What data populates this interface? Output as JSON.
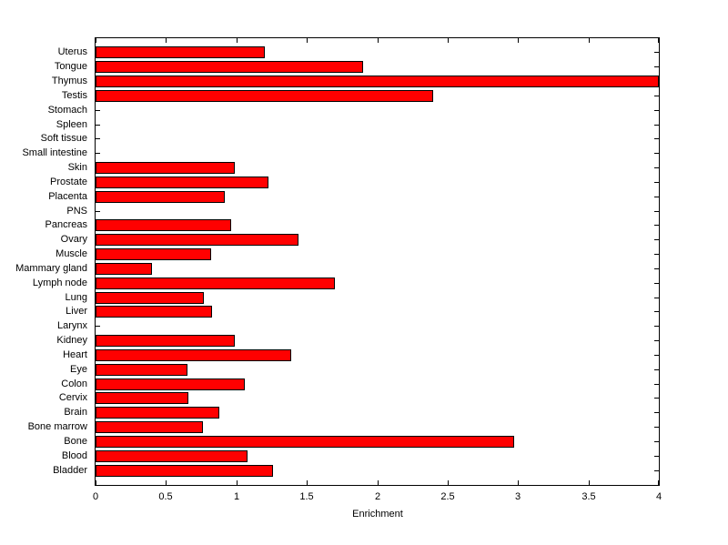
{
  "chart_data": {
    "type": "bar",
    "orientation": "horizontal",
    "title": "",
    "xlabel": "Enrichment",
    "ylabel": "",
    "xlim": [
      0,
      4
    ],
    "xticks": [
      0,
      0.5,
      1,
      1.5,
      2,
      2.5,
      3,
      3.5,
      4
    ],
    "xtick_labels": [
      "0",
      "0.5",
      "1",
      "1.5",
      "2",
      "2.5",
      "3",
      "3.5",
      "4"
    ],
    "grid": false,
    "legend": "none",
    "bar_color": "#ff0000",
    "bar_edge_color": "#000000",
    "axes_color": "#000000",
    "background_color": "#ffffff",
    "categories_top_to_bottom": [
      "Uterus",
      "Tongue",
      "Thymus",
      "Testis",
      "Stomach",
      "Spleen",
      "Soft tissue",
      "Small intestine",
      "Skin",
      "Prostate",
      "Placenta",
      "PNS",
      "Pancreas",
      "Ovary",
      "Muscle",
      "Mammary gland",
      "Lymph node",
      "Lung",
      "Liver",
      "Larynx",
      "Kidney",
      "Heart",
      "Eye",
      "Colon",
      "Cervix",
      "Brain",
      "Bone marrow",
      "Bone",
      "Blood",
      "Bladder"
    ],
    "values": [
      1.2,
      1.9,
      4.0,
      2.4,
      0,
      0,
      0,
      0,
      0.99,
      1.23,
      0.92,
      0,
      0.96,
      1.44,
      0.82,
      0.4,
      1.7,
      0.77,
      0.83,
      0,
      0.99,
      1.39,
      0.65,
      1.06,
      0.66,
      0.88,
      0.76,
      2.97,
      1.08,
      1.26
    ]
  }
}
